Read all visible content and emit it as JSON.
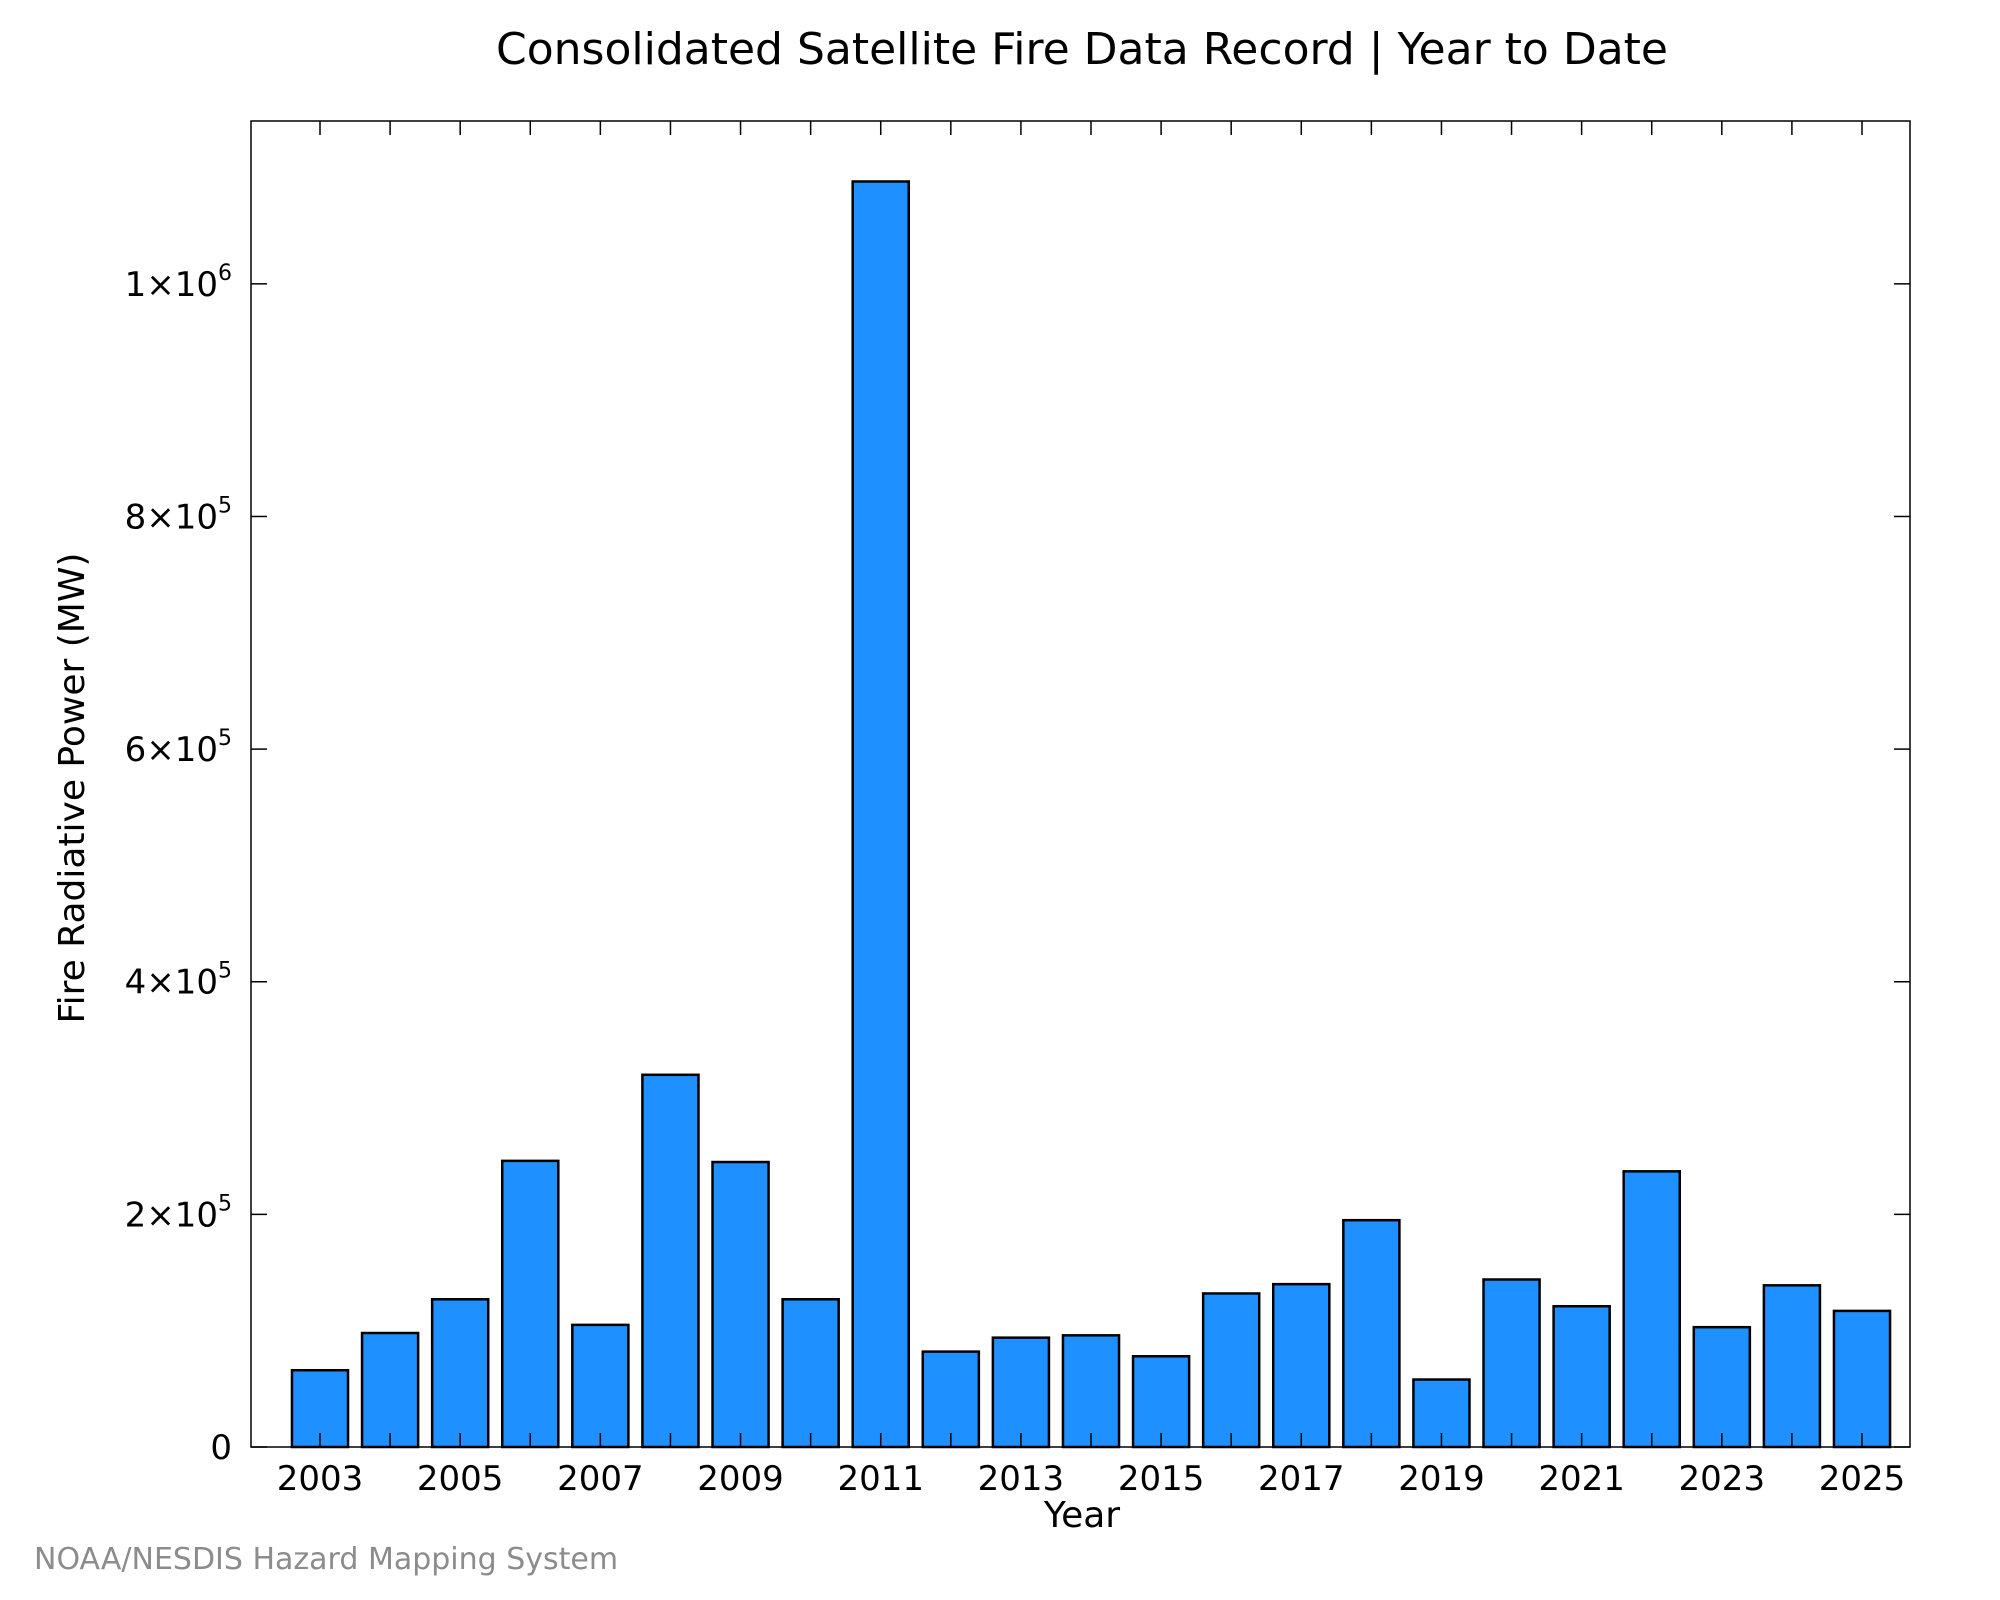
{
  "chart_data": {
    "type": "bar",
    "title": "Consolidated Satellite Fire Data Record | Year to Date",
    "xlabel": "Year",
    "ylabel": "Fire Radiative Power (MW)",
    "credit": "NOAA/NESDIS Hazard Mapping System",
    "bar_color": "#1e90ff",
    "bar_edge_color": "#000000",
    "grid": false,
    "ylim": [
      0,
      1140000
    ],
    "categories": [
      "2003",
      "2004",
      "2005",
      "2006",
      "2007",
      "2008",
      "2009",
      "2010",
      "2011",
      "2012",
      "2013",
      "2014",
      "2015",
      "2016",
      "2017",
      "2018",
      "2019",
      "2020",
      "2021",
      "2022",
      "2023",
      "2024",
      "2025"
    ],
    "values": [
      66000,
      98000,
      127000,
      246000,
      105000,
      320000,
      245000,
      127000,
      1088000,
      82000,
      94000,
      96000,
      78000,
      132000,
      140000,
      195000,
      58000,
      144000,
      121000,
      237000,
      103000,
      139000,
      117000
    ],
    "x_tick_labels": [
      "2003",
      "2005",
      "2007",
      "2009",
      "2011",
      "2013",
      "2015",
      "2017",
      "2019",
      "2021",
      "2023",
      "2025"
    ],
    "y_ticks": [
      {
        "value": 0,
        "mantissa": "0",
        "exponent": ""
      },
      {
        "value": 200000,
        "mantissa": "2×10",
        "exponent": "5"
      },
      {
        "value": 400000,
        "mantissa": "4×10",
        "exponent": "5"
      },
      {
        "value": 600000,
        "mantissa": "6×10",
        "exponent": "5"
      },
      {
        "value": 800000,
        "mantissa": "8×10",
        "exponent": "5"
      },
      {
        "value": 1000000,
        "mantissa": "1×10",
        "exponent": "6"
      }
    ]
  }
}
